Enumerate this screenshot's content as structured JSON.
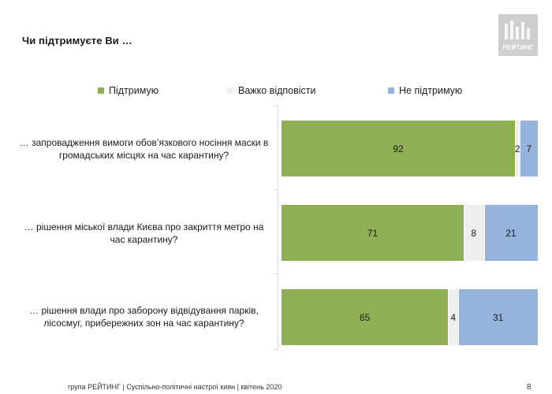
{
  "title": "Чи підтримуєте Ви …",
  "logo": {
    "text": "РЕЙТИНГ"
  },
  "legend": [
    {
      "label": "Підтримую",
      "color": "#8faf53"
    },
    {
      "label": "Важко відповісти",
      "color": "#efefef"
    },
    {
      "label": "Не підтримую",
      "color": "#95b3dc"
    }
  ],
  "footer": "група РЕЙТИНГ | Суспільно-політичні настрої киян | квітень  2020",
  "page_number": "8",
  "chart_data": {
    "type": "bar",
    "orientation": "horizontal",
    "stacked": true,
    "unit": "%",
    "xlim": [
      0,
      100
    ],
    "categories": [
      "… запровадження вимоги обов’язкового носіння маски в громадських місцях на час карантину?",
      "… рішення міської влади Києва про закриття метро на час карантину?",
      "… рішення влади про заборону відвідування парків, лісосмуг, прибережних зон на час карантину?"
    ],
    "series": [
      {
        "name": "Підтримую",
        "values": [
          92,
          71,
          65
        ],
        "color": "#8faf53"
      },
      {
        "name": "Важко відповісти",
        "values": [
          2,
          8,
          4
        ],
        "color": "#efefef"
      },
      {
        "name": "Не підтримую",
        "values": [
          7,
          21,
          31
        ],
        "color": "#95b3dc"
      }
    ],
    "legend_position": "top",
    "grid": false
  }
}
